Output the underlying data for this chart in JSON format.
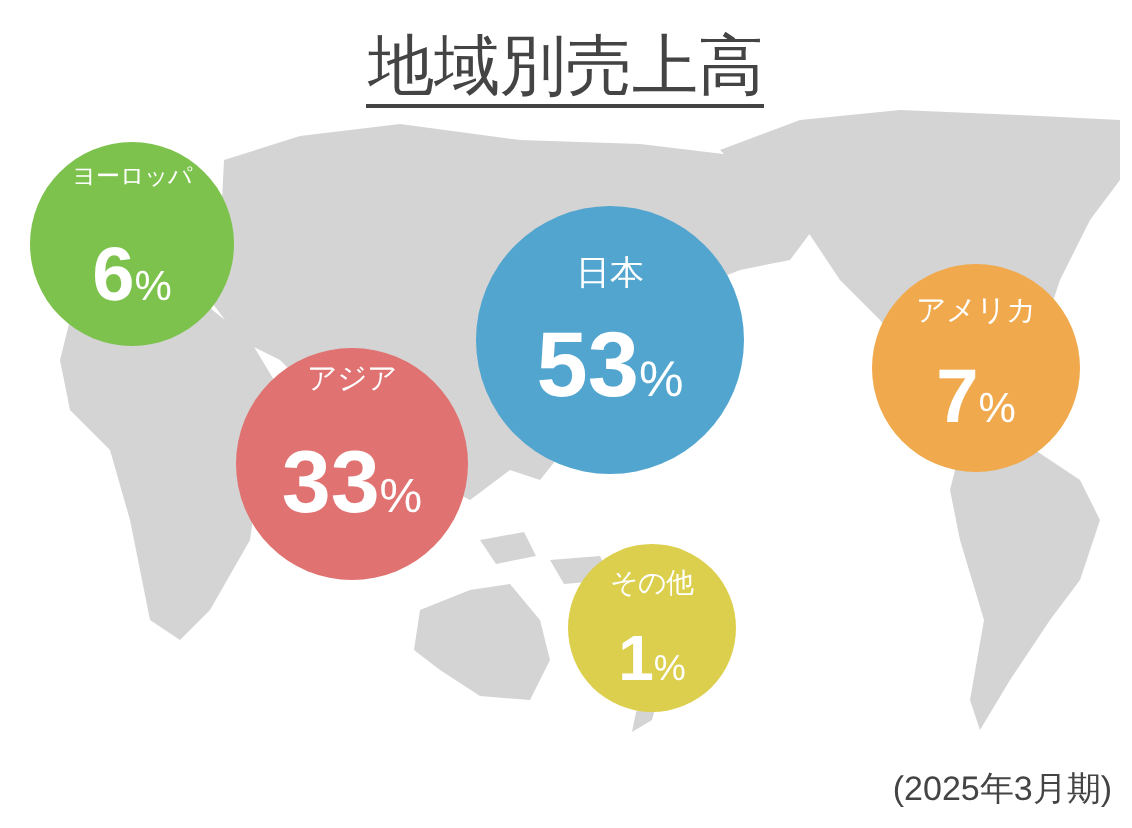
{
  "chart_data": {
    "type": "other",
    "title": "地域別売上高",
    "categories": [
      "ヨーロッパ",
      "アジア",
      "日本",
      "アメリカ",
      "その他"
    ],
    "values": [
      6,
      33,
      53,
      7,
      1
    ],
    "value_labels": [
      "6%",
      "33%",
      "53%",
      "7%",
      "1%"
    ],
    "colors": [
      "#7dc24d",
      "#e07272",
      "#52a5cf",
      "#f0a94d",
      "#dccf4e"
    ],
    "annotations": [
      "(2025年3月期)"
    ]
  }
}
